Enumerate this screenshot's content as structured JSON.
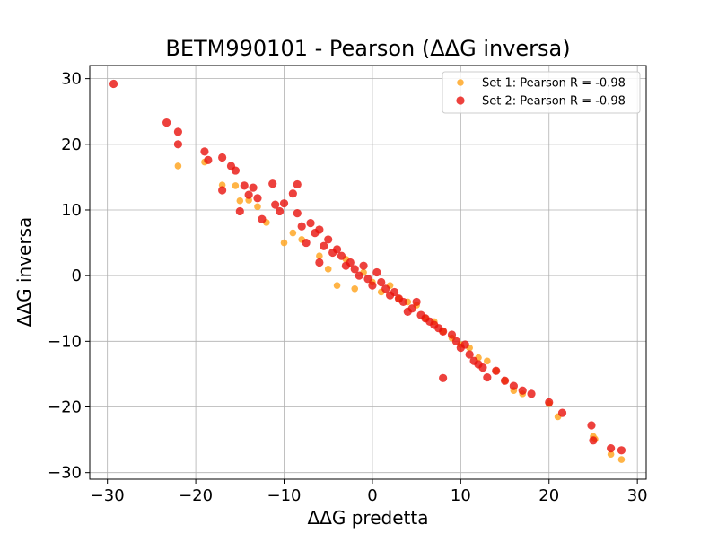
{
  "chart_data": {
    "type": "scatter",
    "title": "BETM990101 - Pearson (ΔΔG inversa)",
    "xlabel": "ΔΔG predetta",
    "ylabel": "ΔΔG inversa",
    "xlim": [
      -32,
      31
    ],
    "ylim": [
      -31,
      32
    ],
    "xticks": [
      -30,
      -20,
      -10,
      0,
      10,
      20,
      30
    ],
    "yticks": [
      -30,
      -20,
      -10,
      0,
      10,
      20,
      30
    ],
    "xtick_labels": [
      "−30",
      "−20",
      "−10",
      "0",
      "10",
      "20",
      "30"
    ],
    "ytick_labels": [
      "−30",
      "−20",
      "−10",
      "0",
      "10",
      "20",
      "30"
    ],
    "grid": true,
    "legend_position": "top-right",
    "series": [
      {
        "name": "Set 1: Pearson R = -0.98",
        "color": "#ffa726",
        "alpha": 0.85,
        "marker": "small-circle",
        "points": [
          [
            -22,
            16.7
          ],
          [
            -19,
            17.3
          ],
          [
            -17,
            13.8
          ],
          [
            -15.5,
            13.7
          ],
          [
            -15,
            11.4
          ],
          [
            -14,
            11.5
          ],
          [
            -13,
            10.5
          ],
          [
            -12,
            8.1
          ],
          [
            -10,
            5.0
          ],
          [
            -9,
            6.5
          ],
          [
            -8,
            5.5
          ],
          [
            -6,
            3.0
          ],
          [
            -5,
            1.0
          ],
          [
            -4,
            -1.5
          ],
          [
            -3,
            2.5
          ],
          [
            -2,
            -2.0
          ],
          [
            -1,
            0.5
          ],
          [
            0,
            -1.0
          ],
          [
            1,
            -2.5
          ],
          [
            2,
            -1.5
          ],
          [
            3,
            -3.5
          ],
          [
            4,
            -4.0
          ],
          [
            5,
            -4.5
          ],
          [
            6,
            -6.5
          ],
          [
            7,
            -7.0
          ],
          [
            8,
            -8.5
          ],
          [
            9,
            -9.5
          ],
          [
            10,
            -10.5
          ],
          [
            11,
            -11.0
          ],
          [
            12,
            -12.5
          ],
          [
            13,
            -13.0
          ],
          [
            14,
            -14.5
          ],
          [
            15,
            -16.0
          ],
          [
            16,
            -17.5
          ],
          [
            17,
            -18.0
          ],
          [
            20,
            -19.5
          ],
          [
            21,
            -21.5
          ],
          [
            25,
            -24.5
          ],
          [
            25.2,
            -24.9
          ],
          [
            27,
            -27.2
          ],
          [
            28.2,
            -28.0
          ]
        ]
      },
      {
        "name": "Set 2: Pearson R = -0.98",
        "color": "#e8120c",
        "alpha": 0.8,
        "marker": "circle",
        "points": [
          [
            -29.3,
            29.2
          ],
          [
            -23.3,
            23.3
          ],
          [
            -22,
            21.9
          ],
          [
            -22,
            20.0
          ],
          [
            -19,
            18.9
          ],
          [
            -18.6,
            17.6
          ],
          [
            -17,
            18.0
          ],
          [
            -17,
            13.0
          ],
          [
            -16,
            16.7
          ],
          [
            -15.5,
            16.0
          ],
          [
            -15,
            9.8
          ],
          [
            -14.5,
            13.7
          ],
          [
            -14,
            12.3
          ],
          [
            -13.5,
            13.4
          ],
          [
            -13,
            11.8
          ],
          [
            -12.5,
            8.6
          ],
          [
            -11.3,
            14.0
          ],
          [
            -11,
            10.8
          ],
          [
            -10.5,
            9.8
          ],
          [
            -10,
            11.0
          ],
          [
            -9,
            12.5
          ],
          [
            -8.5,
            13.9
          ],
          [
            -8.5,
            9.5
          ],
          [
            -8,
            7.5
          ],
          [
            -7.5,
            5.0
          ],
          [
            -7,
            8.0
          ],
          [
            -6.5,
            6.5
          ],
          [
            -6,
            7.0
          ],
          [
            -6,
            2.0
          ],
          [
            -5.5,
            4.5
          ],
          [
            -5,
            5.5
          ],
          [
            -4.5,
            3.5
          ],
          [
            -4,
            4.0
          ],
          [
            -3.5,
            3.0
          ],
          [
            -3,
            1.5
          ],
          [
            -2.5,
            2.0
          ],
          [
            -2,
            1.0
          ],
          [
            -1.5,
            0.0
          ],
          [
            -1,
            1.5
          ],
          [
            -0.5,
            -0.5
          ],
          [
            0,
            -1.5
          ],
          [
            0.5,
            0.5
          ],
          [
            1,
            -1.0
          ],
          [
            1.5,
            -2.0
          ],
          [
            2,
            -3.0
          ],
          [
            2.5,
            -2.5
          ],
          [
            3,
            -3.5
          ],
          [
            3.5,
            -4.0
          ],
          [
            4,
            -5.5
          ],
          [
            4.5,
            -5.0
          ],
          [
            5,
            -4.0
          ],
          [
            5.5,
            -6.0
          ],
          [
            6,
            -6.5
          ],
          [
            6.5,
            -7.0
          ],
          [
            7,
            -7.5
          ],
          [
            7.5,
            -8.0
          ],
          [
            8,
            -8.5
          ],
          [
            8,
            -15.6
          ],
          [
            9,
            -9.0
          ],
          [
            9.5,
            -10.0
          ],
          [
            10,
            -11.0
          ],
          [
            10.5,
            -10.5
          ],
          [
            11,
            -12.0
          ],
          [
            11.5,
            -13.0
          ],
          [
            12,
            -13.5
          ],
          [
            12.5,
            -14.0
          ],
          [
            13,
            -15.5
          ],
          [
            14,
            -14.5
          ],
          [
            15,
            -16.0
          ],
          [
            16,
            -16.8
          ],
          [
            17,
            -17.5
          ],
          [
            18,
            -18.0
          ],
          [
            20,
            -19.3
          ],
          [
            21.5,
            -20.9
          ],
          [
            24.8,
            -22.8
          ],
          [
            25,
            -25.1
          ],
          [
            27,
            -26.3
          ],
          [
            28.2,
            -26.6
          ]
        ]
      }
    ]
  }
}
